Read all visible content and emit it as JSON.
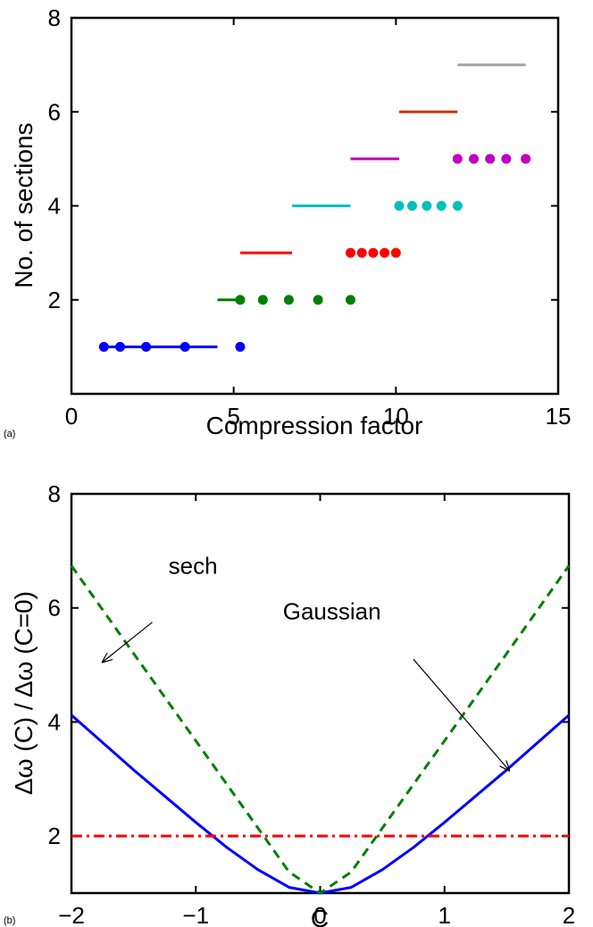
{
  "chart_data": [
    {
      "panel_label": "(a)",
      "type": "scatter",
      "xlabel": "Compression factor",
      "ylabel": "No. of sections",
      "xlim": [
        0,
        15
      ],
      "ylim": [
        0,
        8
      ],
      "xticks": [
        0,
        5,
        10,
        15
      ],
      "yticks": [
        2,
        4,
        6,
        8
      ],
      "xtick_labels": [
        "0",
        "5",
        "10",
        "15"
      ],
      "ytick_labels": [
        "2",
        "4",
        "6",
        "8"
      ],
      "grid": false,
      "series": [
        {
          "color": "#0000ff",
          "y": 1,
          "segment": [
            1.0,
            4.5
          ],
          "points": [
            1.0,
            1.5,
            2.3,
            3.5,
            5.2
          ]
        },
        {
          "color": "#007f00",
          "y": 2,
          "segment": [
            4.5,
            5.2
          ],
          "points": [
            5.2,
            5.9,
            6.7,
            7.6,
            8.6
          ]
        },
        {
          "color": "#ff0000",
          "y": 3,
          "segment": [
            5.2,
            6.8
          ],
          "points": [
            8.6,
            8.95,
            9.3,
            9.65,
            10.0
          ]
        },
        {
          "color": "#00bfbf",
          "y": 4,
          "segment": [
            6.8,
            8.6
          ],
          "points": [
            10.1,
            10.5,
            10.95,
            11.4,
            11.9
          ]
        },
        {
          "color": "#bf00bf",
          "y": 5,
          "segment": [
            8.6,
            10.1
          ],
          "points": [
            11.9,
            12.4,
            12.9,
            13.4,
            14.0
          ]
        },
        {
          "color": "#cc3300",
          "y": 6,
          "segment": [
            10.1,
            11.9
          ],
          "points": []
        },
        {
          "color": "#a5a5a5",
          "y": 7,
          "segment": [
            11.9,
            14.0
          ],
          "points": []
        }
      ]
    },
    {
      "panel_label": "(b)",
      "type": "line",
      "xlabel": "C",
      "ylabel": "Δω (C) / Δω (C=0)",
      "xlim": [
        -2,
        2
      ],
      "ylim": [
        1,
        8
      ],
      "xticks": [
        -2,
        -1,
        0,
        1,
        2
      ],
      "yticks": [
        2,
        4,
        6,
        8
      ],
      "xtick_labels": [
        "−2",
        "−1",
        "0",
        "1",
        "2"
      ],
      "ytick_labels": [
        "2",
        "4",
        "6",
        "8"
      ],
      "grid": false,
      "series": [
        {
          "color": "#0000ff",
          "style": "solid",
          "x": [
            -2,
            -1.75,
            -1.5,
            -1.25,
            -1,
            -0.75,
            -0.5,
            -0.25,
            0,
            0.25,
            0.5,
            0.75,
            1,
            1.25,
            1.5,
            1.75,
            2
          ],
          "y": [
            4.12,
            3.64,
            3.16,
            2.7,
            2.24,
            1.8,
            1.41,
            1.1,
            1.0,
            1.1,
            1.41,
            1.8,
            2.24,
            2.7,
            3.16,
            3.64,
            4.12
          ]
        },
        {
          "color": "#007f00",
          "style": "dashed",
          "x": [
            -2,
            -1.5,
            -1,
            -0.5,
            -0.25,
            0,
            0.25,
            0.5,
            1,
            1.5,
            2
          ],
          "y": [
            6.74,
            5.2,
            3.67,
            2.14,
            1.37,
            1.0,
            1.37,
            2.14,
            3.67,
            5.2,
            6.74
          ]
        },
        {
          "color": "#ff0000",
          "style": "dashdot",
          "x": [
            -2,
            2
          ],
          "y": [
            2,
            2
          ]
        }
      ],
      "annotations": [
        {
          "text": "sech",
          "anchor": [
            -1.22,
            6.6
          ],
          "arrow_from": [
            -1.35,
            5.75
          ],
          "arrow_to": [
            -1.75,
            5.05
          ]
        },
        {
          "text": "Gaussian",
          "anchor": [
            -0.3,
            5.8
          ],
          "arrow_from": [
            0.75,
            5.1
          ],
          "arrow_to": [
            1.52,
            3.15
          ]
        }
      ]
    }
  ]
}
